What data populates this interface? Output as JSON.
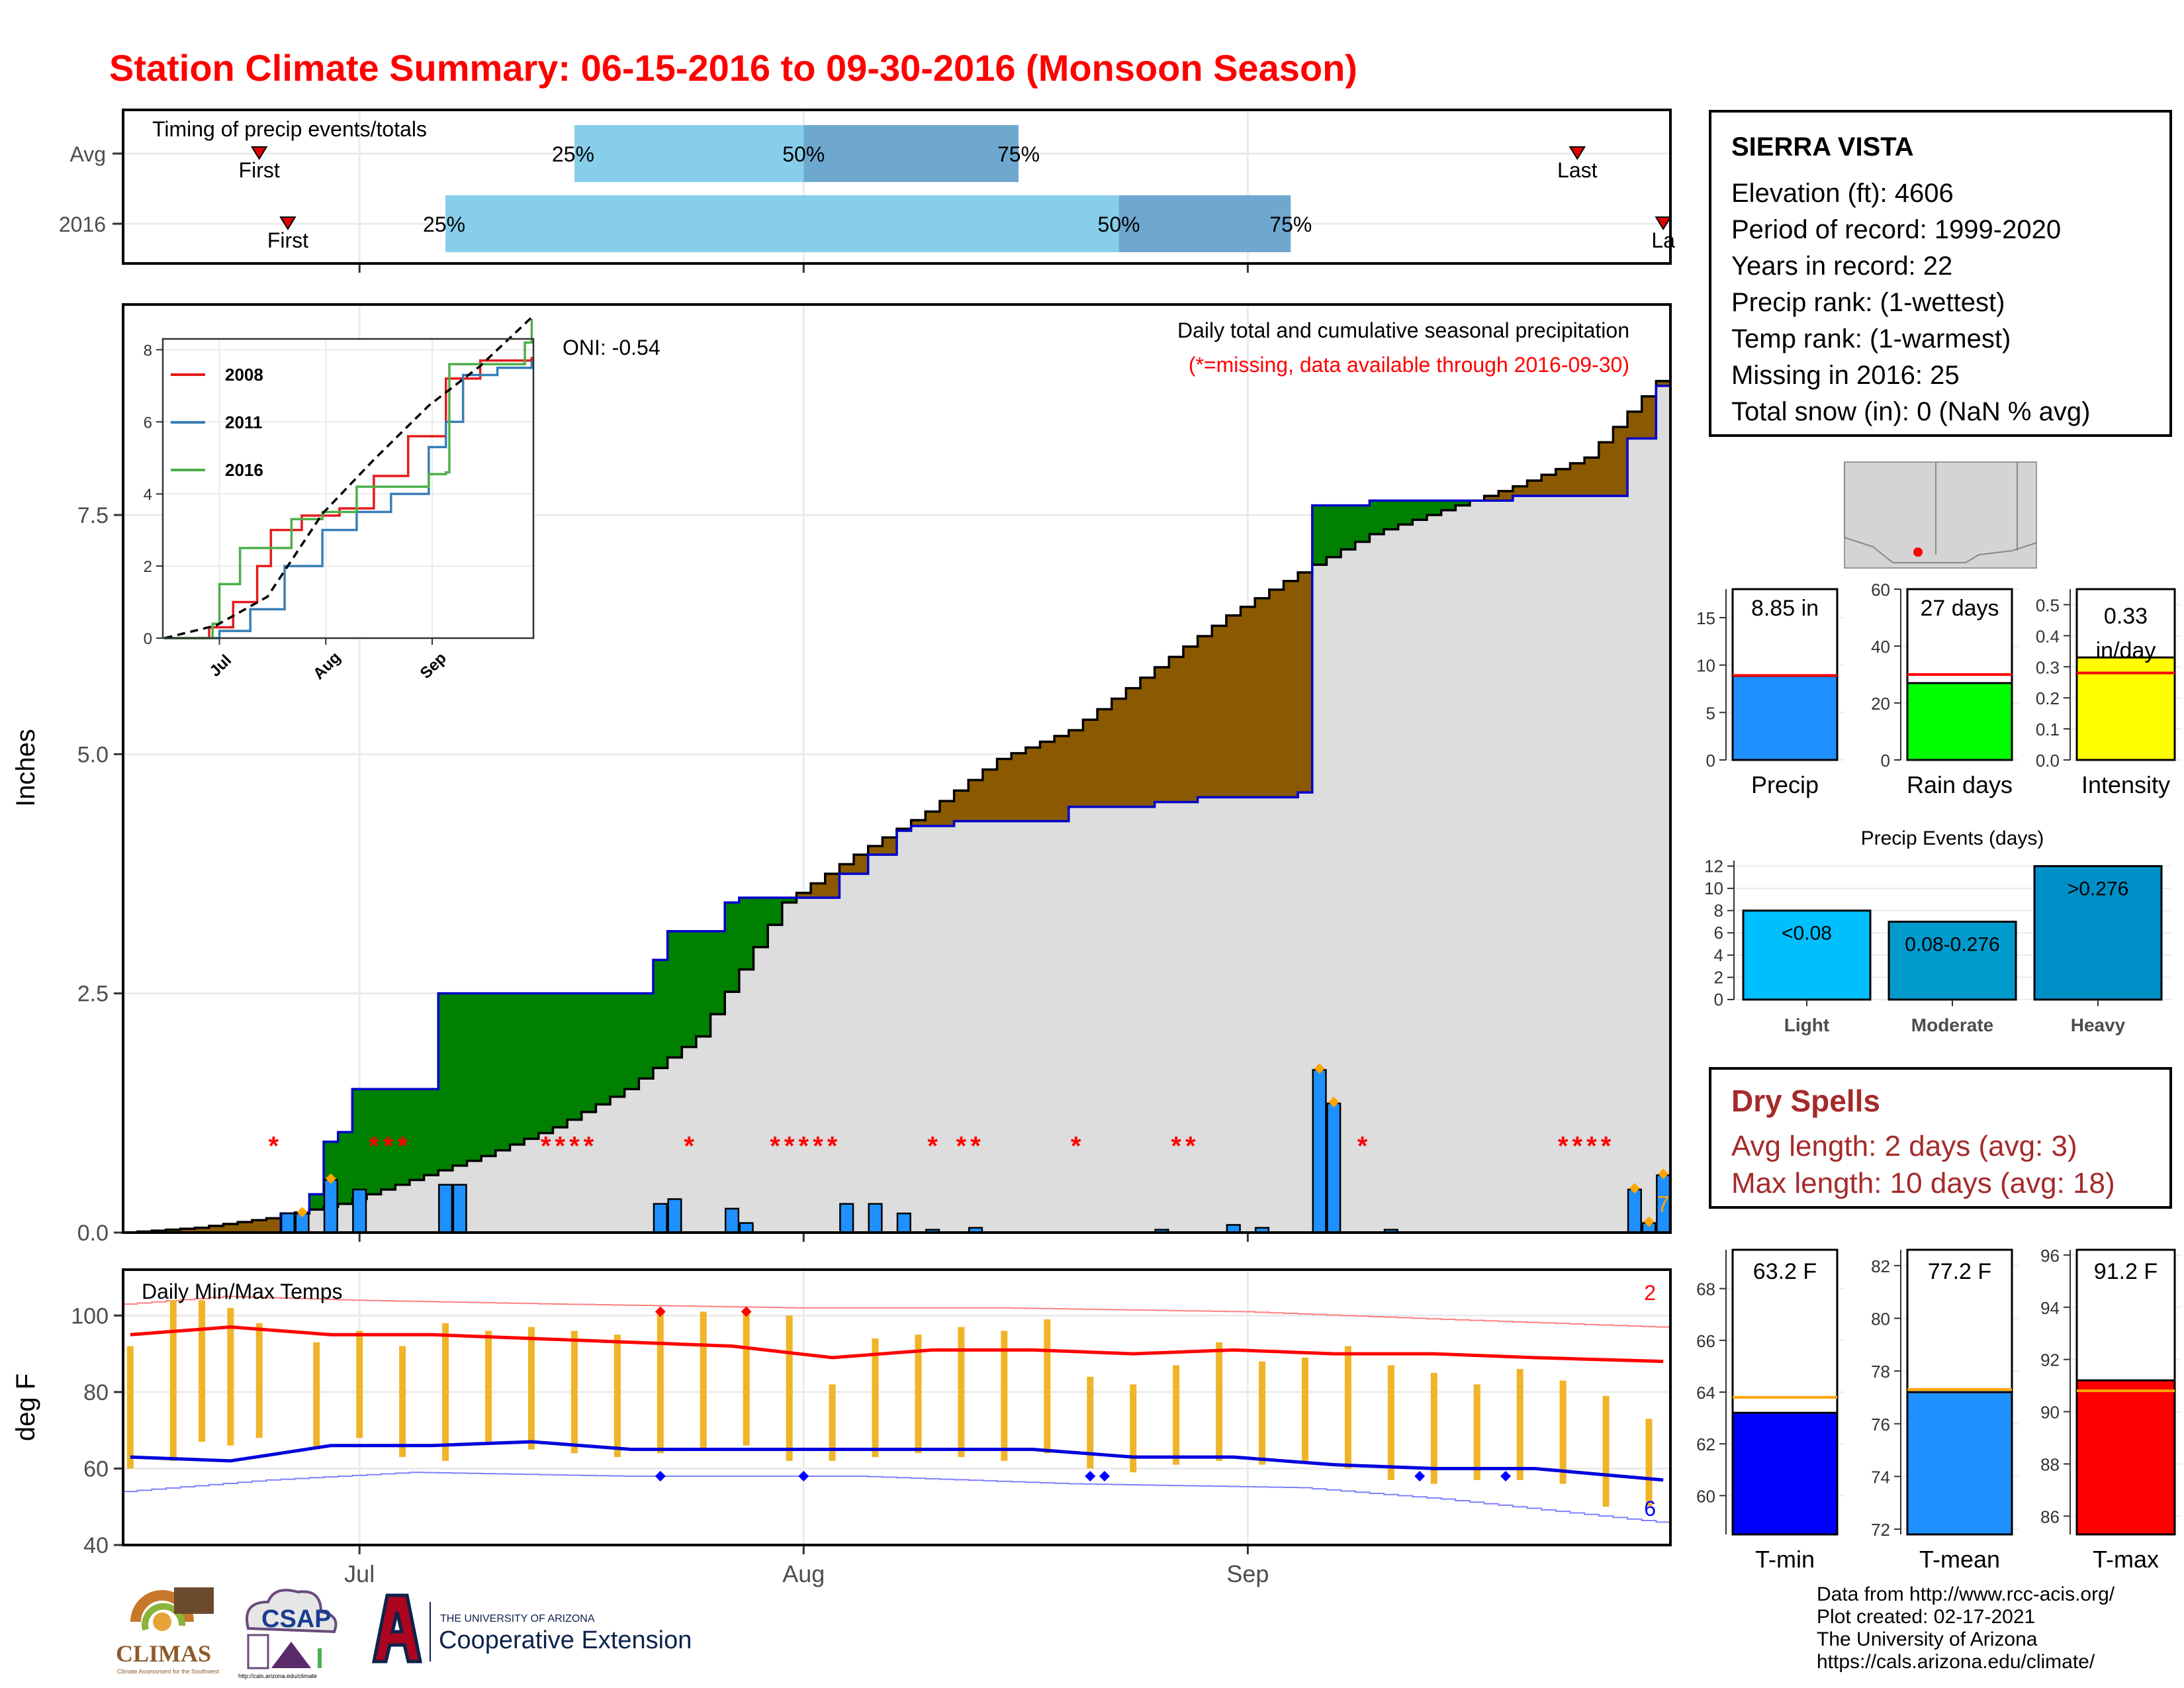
{
  "title": "Station Climate Summary: 06-15-2016 to 09-30-2016 (Monsoon Season)",
  "station": {
    "name": "SIERRA VISTA",
    "lines": [
      "Elevation (ft): 4606",
      "Period of record: 1999-2020",
      "Years in record: 22",
      "Precip rank:  (1-wettest)",
      "Temp rank:  (1-warmest)",
      "Missing in 2016: 25",
      "Total snow (in): 0 (NaN % avg)"
    ]
  },
  "dry_spells": {
    "title": "Dry Spells",
    "avg": "Avg length: 2 days (avg: 3)",
    "max": "Max length: 10 days (avg: 18)"
  },
  "credits": [
    "Data from http://www.rcc-acis.org/",
    "Plot created: 02-17-2021",
    "The University of Arizona",
    "https://cals.arizona.edu/climate/"
  ],
  "logos": {
    "climas": "CLIMAS",
    "climas_sub": "Climate Assessment for the Southwest",
    "csap": "CSAP",
    "csap_url": "http://cals.arizona.edu/climate",
    "ua_top": "THE UNIVERSITY OF ARIZONA",
    "ua_bottom": "Cooperative Extension"
  },
  "colors": {
    "title": "#ff0000",
    "cumulative_fill": "#dddddd",
    "above_avg": "#008000",
    "below_avg": "#8b5a00",
    "daily_bar": "#1e90ff",
    "quartile_light": "#87ceeb",
    "quartile_dark": "#6fa8cf",
    "tmax": "#ff0000",
    "tmin": "#0000dd",
    "temp_range": "#f0b429"
  },
  "chart_data": [
    {
      "type": "bar",
      "id": "timing",
      "title": "Timing of precip events/totals",
      "rows": [
        "Avg",
        "2016"
      ],
      "dates_range": [
        "2016-06-15",
        "2016-09-30"
      ],
      "avg": {
        "first": "2016-06-24",
        "q25": "2016-07-16",
        "q50": "2016-08-01",
        "q75": "2016-08-16",
        "last": "2016-09-24"
      },
      "y2016": {
        "first": "2016-06-26",
        "q25": "2016-07-07",
        "q50": "2016-08-23",
        "q75": "2016-09-04",
        "last": "2016-09-30"
      },
      "marker_first": "First",
      "marker_last": "Last",
      "marker_last_2016": "La",
      "q_labels": [
        "25%",
        "50%",
        "75%"
      ]
    },
    {
      "type": "area",
      "id": "cumulative",
      "title": "Daily total and cumulative seasonal precipitation",
      "subtitle": "(*=missing, data available through 2016-09-30)",
      "oni": "ONI: -0.54",
      "ylabel": "Inches",
      "ylim": [
        0,
        9.7
      ],
      "yticks": [
        0.0,
        2.5,
        5.0,
        7.5
      ],
      "ytick_labels": [
        "0.0",
        "2.5",
        "5.0",
        "7.5"
      ],
      "x_ticks": [
        "Jul",
        "Aug",
        "Sep"
      ],
      "x_tick_dates": [
        "2016-07-01",
        "2016-08-01",
        "2016-09-01"
      ],
      "annotation_rain_count": "7",
      "avg_cumulative": [
        [
          "2016-06-15",
          0.0
        ],
        [
          "2016-06-20",
          0.05
        ],
        [
          "2016-06-25",
          0.15
        ],
        [
          "2016-06-30",
          0.3
        ],
        [
          "2016-07-05",
          0.55
        ],
        [
          "2016-07-10",
          0.8
        ],
        [
          "2016-07-15",
          1.1
        ],
        [
          "2016-07-20",
          1.5
        ],
        [
          "2016-07-25",
          2.05
        ],
        [
          "2016-07-31",
          3.45
        ],
        [
          "2016-08-05",
          3.95
        ],
        [
          "2016-08-10",
          4.4
        ],
        [
          "2016-08-15",
          4.95
        ],
        [
          "2016-08-20",
          5.25
        ],
        [
          "2016-08-25",
          5.8
        ],
        [
          "2016-08-31",
          6.45
        ],
        [
          "2016-09-05",
          6.9
        ],
        [
          "2016-09-10",
          7.3
        ],
        [
          "2016-09-15",
          7.55
        ],
        [
          "2016-09-20",
          7.8
        ],
        [
          "2016-09-25",
          8.1
        ],
        [
          "2016-09-30",
          8.9
        ]
      ],
      "cumulative_2016": [
        [
          "2016-06-15",
          0.0
        ],
        [
          "2016-06-26",
          0.2
        ],
        [
          "2016-06-28",
          0.4
        ],
        [
          "2016-06-29",
          0.95
        ],
        [
          "2016-06-30",
          1.05
        ],
        [
          "2016-07-01",
          1.5
        ],
        [
          "2016-07-07",
          2.5
        ],
        [
          "2016-07-22",
          2.85
        ],
        [
          "2016-07-23",
          3.15
        ],
        [
          "2016-07-27",
          3.45
        ],
        [
          "2016-07-28",
          3.5
        ],
        [
          "2016-07-31",
          3.5
        ],
        [
          "2016-08-04",
          3.75
        ],
        [
          "2016-08-06",
          3.95
        ],
        [
          "2016-08-08",
          4.2
        ],
        [
          "2016-08-09",
          4.25
        ],
        [
          "2016-08-12",
          4.3
        ],
        [
          "2016-08-20",
          4.45
        ],
        [
          "2016-08-26",
          4.5
        ],
        [
          "2016-08-29",
          4.55
        ],
        [
          "2016-09-05",
          4.6
        ],
        [
          "2016-09-06",
          7.6
        ],
        [
          "2016-09-10",
          7.65
        ],
        [
          "2016-09-20",
          7.7
        ],
        [
          "2016-09-28",
          8.3
        ],
        [
          "2016-09-30",
          8.85
        ]
      ],
      "daily_2016": [
        [
          "2016-06-26",
          0.2
        ],
        [
          "2016-06-27",
          0.2
        ],
        [
          "2016-06-29",
          0.55
        ],
        [
          "2016-07-01",
          0.45
        ],
        [
          "2016-07-07",
          0.5
        ],
        [
          "2016-07-08",
          0.5
        ],
        [
          "2016-07-22",
          0.3
        ],
        [
          "2016-07-23",
          0.35
        ],
        [
          "2016-07-27",
          0.25
        ],
        [
          "2016-07-28",
          0.1
        ],
        [
          "2016-08-04",
          0.3
        ],
        [
          "2016-08-06",
          0.3
        ],
        [
          "2016-08-08",
          0.2
        ],
        [
          "2016-08-10",
          0.03
        ],
        [
          "2016-08-13",
          0.05
        ],
        [
          "2016-08-26",
          0.03
        ],
        [
          "2016-08-31",
          0.08
        ],
        [
          "2016-09-02",
          0.05
        ],
        [
          "2016-09-06",
          1.7
        ],
        [
          "2016-09-07",
          1.35
        ],
        [
          "2016-09-11",
          0.03
        ],
        [
          "2016-09-28",
          0.45
        ],
        [
          "2016-09-29",
          0.1
        ],
        [
          "2016-09-30",
          0.6
        ]
      ],
      "record_days": [
        "2016-06-29",
        "2016-06-27",
        "2016-09-06",
        "2016-09-07",
        "2016-09-28",
        "2016-09-29",
        "2016-09-30"
      ],
      "missing_days": [
        "2016-06-25",
        "2016-07-02",
        "2016-07-03",
        "2016-07-04",
        "2016-07-14",
        "2016-07-15",
        "2016-07-16",
        "2016-07-17",
        "2016-07-24",
        "2016-07-30",
        "2016-07-31",
        "2016-08-01",
        "2016-08-02",
        "2016-08-03",
        "2016-08-10",
        "2016-08-12",
        "2016-08-13",
        "2016-08-20",
        "2016-08-27",
        "2016-08-28",
        "2016-09-09",
        "2016-09-23",
        "2016-09-24",
        "2016-09-25",
        "2016-09-26"
      ]
    },
    {
      "type": "line",
      "id": "inset",
      "series": [
        {
          "name": "2008",
          "color": "#e41a1c",
          "x": [
            "2016-06-15",
            "2016-06-28",
            "2016-07-05",
            "2016-07-12",
            "2016-07-16",
            "2016-07-25",
            "2016-08-05",
            "2016-08-15",
            "2016-08-25",
            "2016-09-05",
            "2016-09-15",
            "2016-09-30"
          ],
          "values": [
            0,
            0.3,
            1.0,
            2.0,
            3.0,
            3.4,
            3.6,
            4.5,
            5.6,
            7.2,
            7.7,
            7.8
          ]
        },
        {
          "name": "2011",
          "color": "#377eb8",
          "x": [
            "2016-06-15",
            "2016-07-01",
            "2016-07-10",
            "2016-07-20",
            "2016-07-31",
            "2016-08-10",
            "2016-08-20",
            "2016-08-31",
            "2016-09-05",
            "2016-09-10",
            "2016-09-20",
            "2016-09-30"
          ],
          "values": [
            0,
            0.2,
            0.8,
            2.0,
            3.0,
            3.5,
            4.0,
            5.3,
            6.0,
            7.3,
            7.5,
            7.7
          ]
        },
        {
          "name": "2016",
          "color": "#4daf4a",
          "x": [
            "2016-06-15",
            "2016-06-29",
            "2016-07-01",
            "2016-07-07",
            "2016-07-22",
            "2016-07-31",
            "2016-08-10",
            "2016-08-31",
            "2016-09-05",
            "2016-09-06",
            "2016-09-28",
            "2016-09-30"
          ],
          "values": [
            0,
            0.4,
            1.5,
            2.5,
            3.3,
            3.5,
            4.2,
            4.55,
            4.6,
            7.6,
            8.2,
            8.85
          ]
        }
      ],
      "avg_dashed": {
        "x": [
          "2016-06-15",
          "2016-06-30",
          "2016-07-15",
          "2016-07-31",
          "2016-08-15",
          "2016-08-31",
          "2016-09-15",
          "2016-09-30"
        ],
        "values": [
          0,
          0.35,
          1.15,
          3.45,
          4.95,
          6.45,
          7.55,
          8.9
        ]
      },
      "ylim": [
        0,
        8.3
      ],
      "yticks": [
        0,
        2,
        4,
        6,
        8
      ],
      "x_ticks": [
        "Jul",
        "Aug",
        "Sep"
      ]
    },
    {
      "type": "line",
      "id": "temps",
      "title": "Daily Min/Max Temps",
      "ylabel": "deg F",
      "ylim": [
        40,
        112
      ],
      "yticks": [
        40,
        60,
        80,
        100
      ],
      "x_ticks": [
        "Jul",
        "Aug",
        "Sep"
      ],
      "record_high_count": "2",
      "record_low_count": "6",
      "avg_tmax": [
        [
          "2016-06-15",
          95
        ],
        [
          "2016-06-22",
          97
        ],
        [
          "2016-06-29",
          95
        ],
        [
          "2016-07-06",
          95
        ],
        [
          "2016-07-13",
          94
        ],
        [
          "2016-07-20",
          93
        ],
        [
          "2016-07-27",
          92
        ],
        [
          "2016-08-03",
          89
        ],
        [
          "2016-08-10",
          91
        ],
        [
          "2016-08-17",
          91
        ],
        [
          "2016-08-24",
          90
        ],
        [
          "2016-08-31",
          91
        ],
        [
          "2016-09-07",
          90
        ],
        [
          "2016-09-14",
          90
        ],
        [
          "2016-09-21",
          89
        ],
        [
          "2016-09-30",
          88
        ]
      ],
      "avg_tmin": [
        [
          "2016-06-15",
          63
        ],
        [
          "2016-06-22",
          62
        ],
        [
          "2016-06-29",
          66
        ],
        [
          "2016-07-06",
          66
        ],
        [
          "2016-07-13",
          67
        ],
        [
          "2016-07-20",
          65
        ],
        [
          "2016-07-27",
          65
        ],
        [
          "2016-08-03",
          65
        ],
        [
          "2016-08-10",
          65
        ],
        [
          "2016-08-17",
          65
        ],
        [
          "2016-08-24",
          63
        ],
        [
          "2016-08-31",
          63
        ],
        [
          "2016-09-07",
          61
        ],
        [
          "2016-09-14",
          60
        ],
        [
          "2016-09-21",
          60
        ],
        [
          "2016-09-30",
          57
        ]
      ],
      "record_tmax": [
        [
          "2016-06-15",
          103
        ],
        [
          "2016-06-22",
          105
        ],
        [
          "2016-07-01",
          104
        ],
        [
          "2016-07-15",
          103
        ],
        [
          "2016-08-01",
          102
        ],
        [
          "2016-08-15",
          102
        ],
        [
          "2016-09-01",
          101
        ],
        [
          "2016-09-15",
          99
        ],
        [
          "2016-09-30",
          97
        ]
      ],
      "record_tmin": [
        [
          "2016-06-15",
          54
        ],
        [
          "2016-06-25",
          57
        ],
        [
          "2016-07-05",
          59
        ],
        [
          "2016-07-20",
          58
        ],
        [
          "2016-08-05",
          58
        ],
        [
          "2016-08-20",
          56
        ],
        [
          "2016-09-05",
          55
        ],
        [
          "2016-09-15",
          52
        ],
        [
          "2016-09-30",
          46
        ]
      ],
      "daily_range_2016": [
        [
          "2016-06-15",
          60,
          92
        ],
        [
          "2016-06-18",
          62,
          104
        ],
        [
          "2016-06-20",
          67,
          104
        ],
        [
          "2016-06-22",
          66,
          102
        ],
        [
          "2016-06-24",
          68,
          98
        ],
        [
          "2016-06-28",
          65,
          93
        ],
        [
          "2016-07-01",
          68,
          96
        ],
        [
          "2016-07-04",
          63,
          92
        ],
        [
          "2016-07-07",
          62,
          98
        ],
        [
          "2016-07-10",
          67,
          96
        ],
        [
          "2016-07-13",
          65,
          97
        ],
        [
          "2016-07-16",
          64,
          96
        ],
        [
          "2016-07-19",
          63,
          95
        ],
        [
          "2016-07-22",
          64,
          101
        ],
        [
          "2016-07-25",
          65,
          101
        ],
        [
          "2016-07-28",
          66,
          101
        ],
        [
          "2016-07-31",
          62,
          100
        ],
        [
          "2016-08-03",
          62,
          82
        ],
        [
          "2016-08-06",
          63,
          94
        ],
        [
          "2016-08-09",
          64,
          95
        ],
        [
          "2016-08-12",
          63,
          97
        ],
        [
          "2016-08-15",
          62,
          96
        ],
        [
          "2016-08-18",
          64,
          99
        ],
        [
          "2016-08-21",
          60,
          84
        ],
        [
          "2016-08-24",
          59,
          82
        ],
        [
          "2016-08-27",
          61,
          87
        ],
        [
          "2016-08-30",
          62,
          93
        ],
        [
          "2016-09-02",
          61,
          88
        ],
        [
          "2016-09-05",
          62,
          89
        ],
        [
          "2016-09-08",
          60,
          92
        ],
        [
          "2016-09-11",
          57,
          87
        ],
        [
          "2016-09-14",
          56,
          85
        ],
        [
          "2016-09-17",
          57,
          82
        ],
        [
          "2016-09-20",
          57,
          86
        ],
        [
          "2016-09-23",
          56,
          83
        ],
        [
          "2016-09-26",
          50,
          79
        ],
        [
          "2016-09-29",
          50,
          73
        ]
      ],
      "record_high_days": [
        "2016-07-22",
        "2016-07-28"
      ],
      "record_low_days": [
        "2016-07-22",
        "2016-08-01",
        "2016-08-21",
        "2016-08-22",
        "2016-09-13",
        "2016-09-19"
      ]
    },
    {
      "type": "bar",
      "id": "precip-total",
      "categories": [
        "Precip"
      ],
      "values": [
        8.85
      ],
      "avg": 8.9,
      "label": "8.85 in",
      "ylim": [
        0,
        18
      ],
      "yticks": [
        0,
        5,
        10,
        15
      ]
    },
    {
      "type": "bar",
      "id": "rain-days",
      "categories": [
        "Rain days"
      ],
      "values": [
        27
      ],
      "avg": 30,
      "label": "27 days",
      "ylim": [
        0,
        60
      ],
      "yticks": [
        0,
        20,
        40,
        60
      ]
    },
    {
      "type": "bar",
      "id": "intensity",
      "categories": [
        "Intensity"
      ],
      "values": [
        0.33
      ],
      "avg": 0.28,
      "label": "0.33",
      "label2": "in/day",
      "ylim": [
        0,
        0.55
      ],
      "yticks": [
        0.0,
        0.1,
        0.2,
        0.3,
        0.4,
        0.5
      ],
      "ytick_labels": [
        "0.0",
        "0.1",
        "0.2",
        "0.3",
        "0.4",
        "0.5"
      ]
    },
    {
      "type": "bar",
      "id": "precip-events",
      "title": "Precip Events (days)",
      "categories": [
        "Light",
        "Moderate",
        "Heavy"
      ],
      "values": [
        8,
        7,
        12
      ],
      "bar_labels": [
        "<0.08",
        "0.08-0.276",
        ">0.276"
      ],
      "bar_colors": [
        "#00bfff",
        "#009acd",
        "#0090c8"
      ],
      "ylim": [
        0,
        12.5
      ],
      "yticks": [
        0,
        2,
        4,
        6,
        8,
        10,
        12
      ]
    },
    {
      "type": "bar",
      "id": "tmin-bar",
      "categories": [
        "T-min"
      ],
      "values": [
        63.2
      ],
      "avg": 63.8,
      "label": "63.2 F",
      "color": "#0000ff",
      "ylim": [
        58.5,
        69.5
      ],
      "yticks": [
        60,
        62,
        64,
        66,
        68
      ]
    },
    {
      "type": "bar",
      "id": "tmean-bar",
      "categories": [
        "T-mean"
      ],
      "values": [
        77.2
      ],
      "avg": 77.3,
      "label": "77.2 F",
      "color": "#1e90ff",
      "ylim": [
        71.8,
        82.6
      ],
      "yticks": [
        72,
        74,
        76,
        78,
        80,
        82
      ]
    },
    {
      "type": "bar",
      "id": "tmax-bar",
      "categories": [
        "T-max"
      ],
      "values": [
        91.2
      ],
      "avg": 90.8,
      "label": "91.2 F",
      "color": "#ff0000",
      "ylim": [
        85.3,
        96.2
      ],
      "yticks": [
        86,
        88,
        90,
        92,
        94,
        96
      ]
    }
  ]
}
